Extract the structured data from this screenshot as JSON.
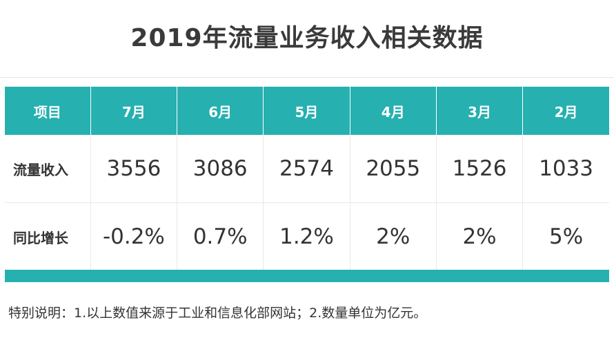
{
  "title": "2019年流量业务收入相关数据",
  "table": {
    "headers": [
      "项目",
      "7月",
      "6月",
      "5月",
      "4月",
      "3月",
      "2月"
    ],
    "rows": [
      {
        "label": "流量收入",
        "values": [
          "3556",
          "3086",
          "2574",
          "2055",
          "1526",
          "1033"
        ]
      },
      {
        "label": "同比增长",
        "values": [
          "-0.2%",
          "0.7%",
          "1.2%",
          "2%",
          "2%",
          "5%"
        ]
      }
    ]
  },
  "note": "特别说明：1.以上数值来源于工业和信息化部网站；2.数量单位为亿元。",
  "colors": {
    "accent": "#26b0b0",
    "text": "#333333",
    "title": "#3a3a3a"
  }
}
